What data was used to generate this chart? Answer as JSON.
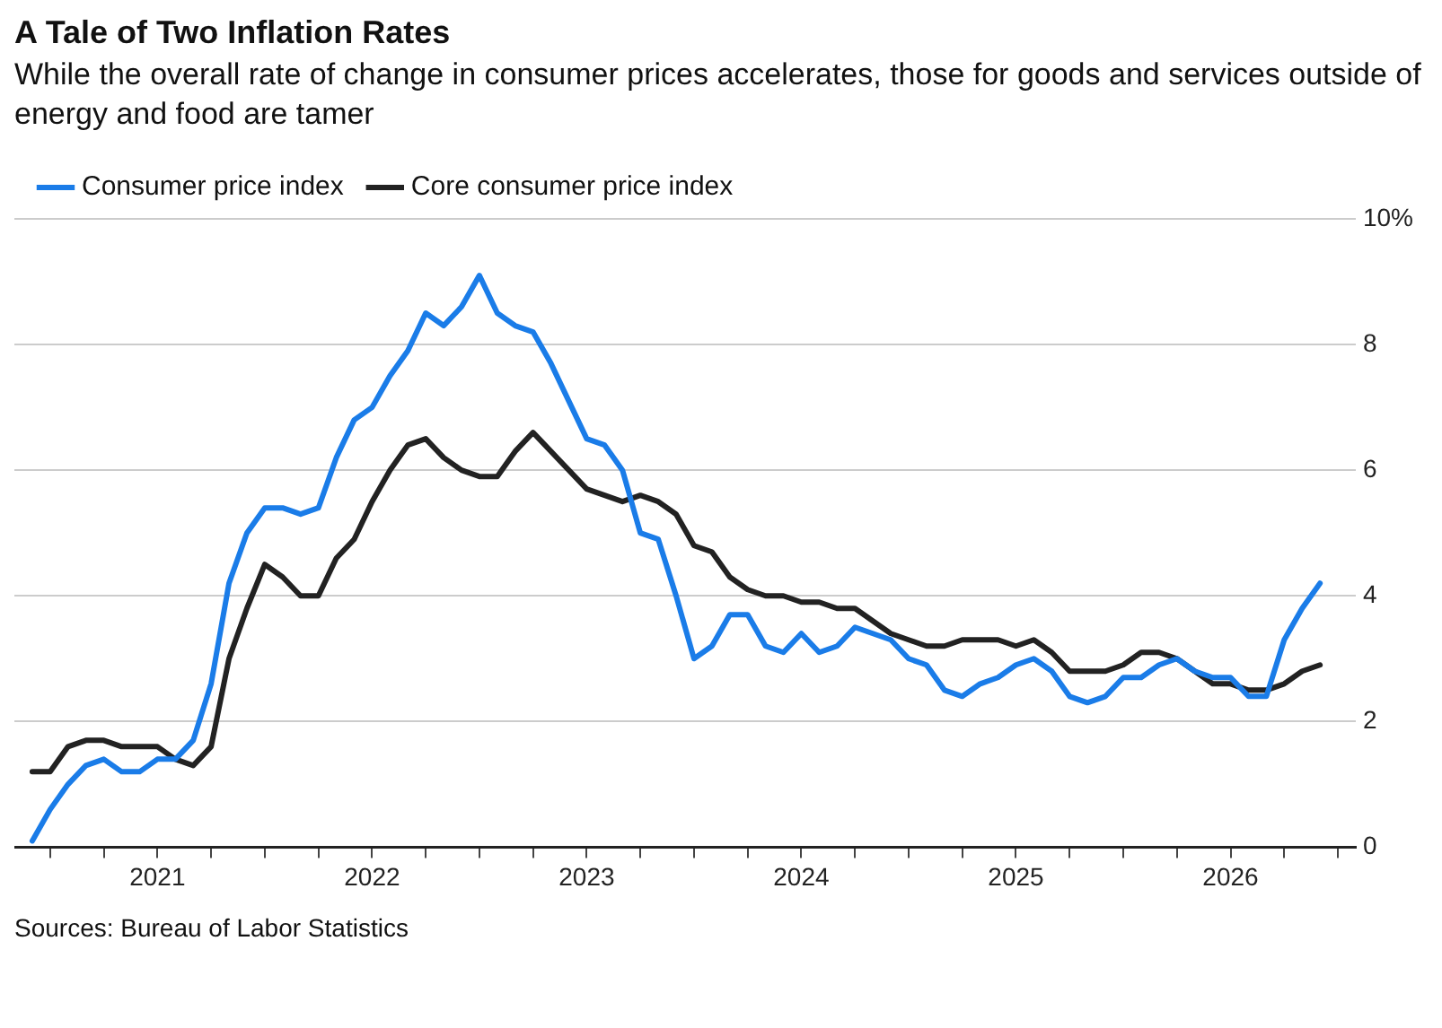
{
  "chart_data": {
    "type": "line",
    "title": "A Tale of Two Inflation Rates",
    "subtitle": "While the overall rate of change in consumer prices accelerates, those for goods and services outside of energy and food are tamer",
    "x": [
      "2020-06",
      "2020-07",
      "2020-08",
      "2020-09",
      "2020-10",
      "2020-11",
      "2020-12",
      "2021-01",
      "2021-02",
      "2021-03",
      "2021-04",
      "2021-05",
      "2021-06",
      "2021-07",
      "2021-08",
      "2021-09",
      "2021-10",
      "2021-11",
      "2021-12",
      "2022-01",
      "2022-02",
      "2022-03",
      "2022-04",
      "2022-05",
      "2022-06",
      "2022-07",
      "2022-08",
      "2022-09",
      "2022-10",
      "2022-11",
      "2022-12",
      "2023-01",
      "2023-02",
      "2023-03",
      "2023-04",
      "2023-05",
      "2023-06",
      "2023-07",
      "2023-08",
      "2023-09",
      "2023-10",
      "2023-11",
      "2023-12",
      "2024-01",
      "2024-02",
      "2024-03",
      "2024-04",
      "2024-05",
      "2024-06",
      "2024-07",
      "2024-08",
      "2024-09",
      "2024-10",
      "2024-11",
      "2024-12",
      "2025-01",
      "2025-02",
      "2025-03",
      "2025-04",
      "2025-05",
      "2025-06",
      "2025-07",
      "2025-08",
      "2025-09",
      "2025-10",
      "2025-11",
      "2025-12",
      "2026-01",
      "2026-02",
      "2026-03",
      "2026-04",
      "2026-05",
      "2026-06"
    ],
    "series": [
      {
        "name": "Consumer price index",
        "color": "#1a7ce8",
        "values": [
          0.1,
          0.6,
          1.0,
          1.3,
          1.4,
          1.2,
          1.2,
          1.4,
          1.4,
          1.7,
          2.6,
          4.2,
          5.0,
          5.4,
          5.4,
          5.3,
          5.4,
          6.2,
          6.8,
          7.0,
          7.5,
          7.9,
          8.5,
          8.3,
          8.6,
          9.1,
          8.5,
          8.3,
          8.2,
          7.7,
          7.1,
          6.5,
          6.4,
          6.0,
          5.0,
          4.9,
          4.0,
          3.0,
          3.2,
          3.7,
          3.7,
          3.2,
          3.1,
          3.4,
          3.1,
          3.2,
          3.5,
          3.4,
          3.3,
          3.0,
          2.9,
          2.5,
          2.4,
          2.6,
          2.7,
          2.9,
          3.0,
          2.8,
          2.4,
          2.3,
          2.4,
          2.7,
          2.7,
          2.9,
          3.0,
          2.8,
          2.7,
          2.7,
          2.4,
          2.4,
          3.3,
          3.8,
          4.2
        ]
      },
      {
        "name": "Core consumer price index",
        "color": "#222222",
        "values": [
          1.2,
          1.2,
          1.6,
          1.7,
          1.7,
          1.6,
          1.6,
          1.6,
          1.4,
          1.3,
          1.6,
          3.0,
          3.8,
          4.5,
          4.3,
          4.0,
          4.0,
          4.6,
          4.9,
          5.5,
          6.0,
          6.4,
          6.5,
          6.2,
          6.0,
          5.9,
          5.9,
          6.3,
          6.6,
          6.3,
          6.0,
          5.7,
          5.6,
          5.5,
          5.6,
          5.5,
          5.3,
          4.8,
          4.7,
          4.3,
          4.1,
          4.0,
          4.0,
          3.9,
          3.9,
          3.8,
          3.8,
          3.6,
          3.4,
          3.3,
          3.2,
          3.2,
          3.3,
          3.3,
          3.3,
          3.2,
          3.3,
          3.1,
          2.8,
          2.8,
          2.8,
          2.9,
          3.1,
          3.1,
          3.0,
          2.8,
          2.6,
          2.6,
          2.5,
          2.5,
          2.6,
          2.8,
          2.9
        ]
      }
    ],
    "xlim": [
      "2020-05",
      "2026-08"
    ],
    "xticks": [
      {
        "value": "2020-07",
        "label": null
      },
      {
        "value": "2020-10",
        "label": null
      },
      "2021",
      {
        "value": "2021-04",
        "label": null
      },
      {
        "value": "2021-07",
        "label": null
      },
      {
        "value": "2021-10",
        "label": null
      },
      "2022",
      {
        "value": "2022-04",
        "label": null
      },
      {
        "value": "2022-07",
        "label": null
      },
      {
        "value": "2022-10",
        "label": null
      },
      "2023",
      {
        "value": "2023-04",
        "label": null
      },
      {
        "value": "2023-07",
        "label": null
      },
      {
        "value": "2023-10",
        "label": null
      },
      "2024",
      {
        "value": "2024-04",
        "label": null
      },
      {
        "value": "2024-07",
        "label": null
      },
      {
        "value": "2024-10",
        "label": null
      },
      "2025",
      {
        "value": "2025-04",
        "label": null
      },
      {
        "value": "2025-07",
        "label": null
      },
      {
        "value": "2025-10",
        "label": null
      },
      "2026",
      {
        "value": "2026-04",
        "label": null
      },
      {
        "value": "2026-07",
        "label": null
      }
    ],
    "ylim": [
      0,
      10
    ],
    "yticks": [
      0,
      2,
      4,
      6,
      8,
      {
        "value": 10,
        "label": "10%"
      }
    ],
    "grid": "y",
    "legend": "top left",
    "marker": "none",
    "line_style": "solid",
    "annotations": [
      "Sources: Bureau of Labor Statistics"
    ]
  }
}
